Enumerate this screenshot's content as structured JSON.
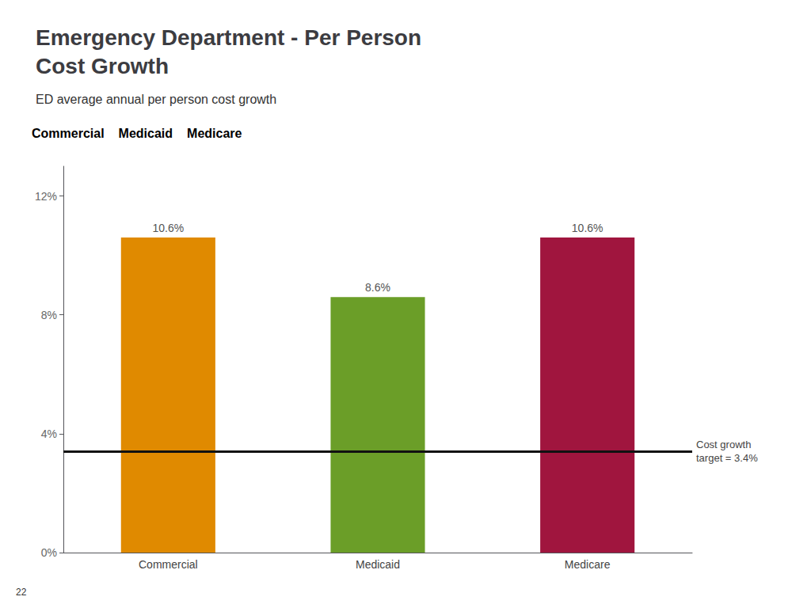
{
  "chart_data": {
    "type": "bar",
    "title": "Emergency Department - Per Person\nCost Growth",
    "subtitle": "ED average annual per person cost growth",
    "categories": [
      "Commercial",
      "Medicaid",
      "Medicare"
    ],
    "values": [
      10.6,
      8.6,
      10.6
    ],
    "value_labels": [
      "10.6%",
      "8.6%",
      "10.6%"
    ],
    "data_labels": true,
    "colors": [
      "#E08A00",
      "#6B9E28",
      "#A0153E"
    ],
    "ylim": [
      0,
      13
    ],
    "yticks": [
      {
        "value": 0,
        "label": "0%"
      },
      {
        "value": 4,
        "label": "4%"
      },
      {
        "value": 8,
        "label": "8%"
      },
      {
        "value": 12,
        "label": "12%"
      }
    ],
    "grid": false,
    "reference_line": {
      "y": 3.4,
      "label": "Cost growth\ntarget = 3.4%",
      "color": "#111111"
    },
    "page_number": "22"
  }
}
